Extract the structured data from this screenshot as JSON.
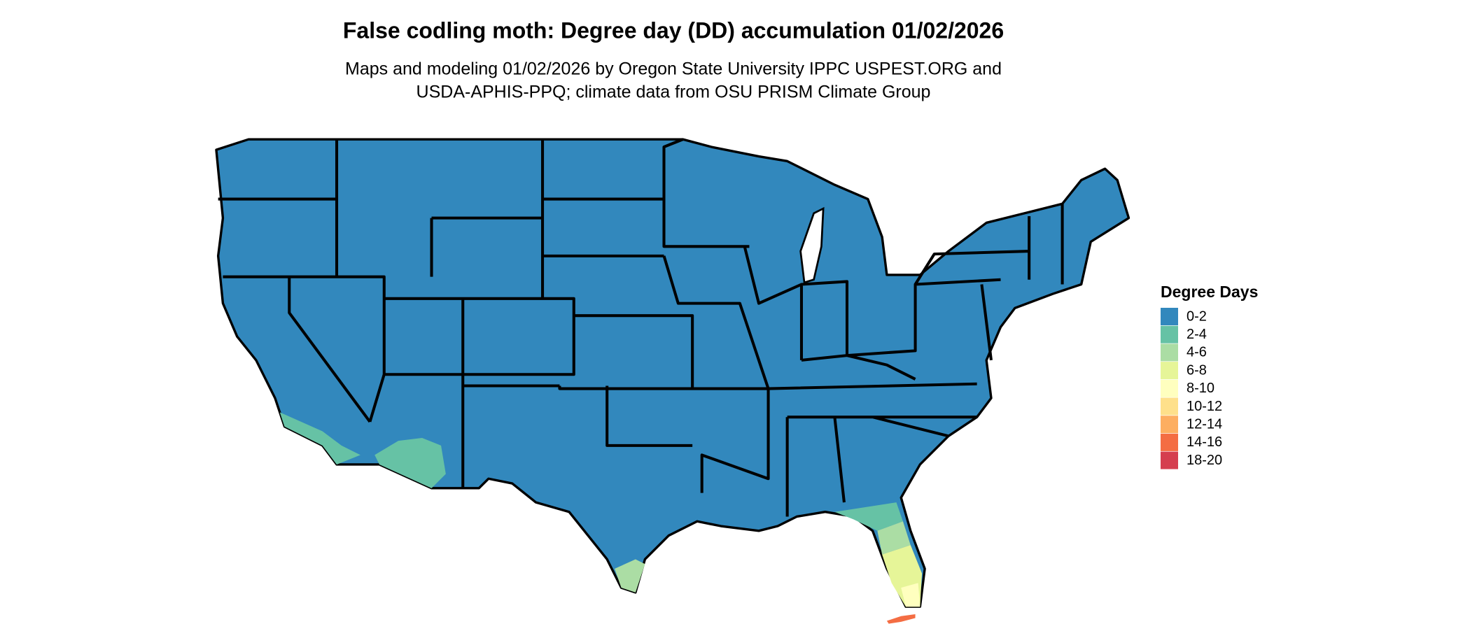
{
  "title": "False codling moth: Degree day (DD) accumulation 01/02/2026",
  "subtitle": [
    "Maps and modeling 01/02/2026 by Oregon State University IPPC USPEST.ORG and",
    "USDA-APHIS-PPQ; climate data from OSU PRISM Climate Group"
  ],
  "legend": {
    "title": "Degree Days",
    "items": [
      {
        "label": "0-2",
        "color": "#3288bd"
      },
      {
        "label": "2-4",
        "color": "#66c2a5"
      },
      {
        "label": "4-6",
        "color": "#abdda4"
      },
      {
        "label": "6-8",
        "color": "#e6f598"
      },
      {
        "label": "8-10",
        "color": "#ffffbf"
      },
      {
        "label": "10-12",
        "color": "#fee08b"
      },
      {
        "label": "12-14",
        "color": "#fdae61"
      },
      {
        "label": "14-16",
        "color": "#f46d43"
      },
      {
        "label": "18-20",
        "color": "#d53e4f"
      }
    ]
  }
}
